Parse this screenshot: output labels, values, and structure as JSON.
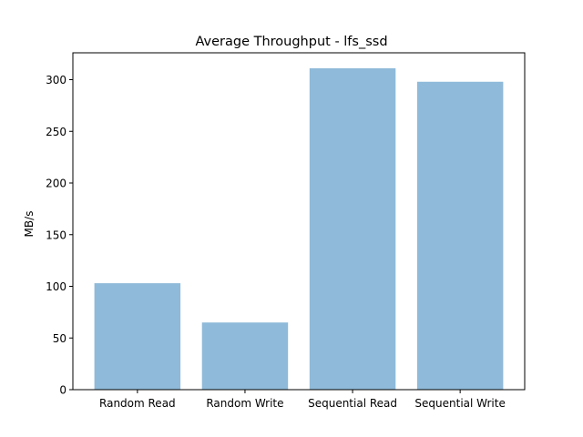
{
  "chart_data": {
    "type": "bar",
    "title": "Average Throughput - lfs_ssd",
    "xlabel": "",
    "ylabel": "MB/s",
    "categories": [
      "Random Read",
      "Random Write",
      "Sequential Read",
      "Sequential Write"
    ],
    "values": [
      103,
      65,
      311,
      298
    ],
    "ylim": [
      0,
      326
    ],
    "yticks": [
      0,
      50,
      100,
      150,
      200,
      250,
      300
    ],
    "bar_color": "#8fbad9",
    "grid": false,
    "legend": "none"
  }
}
